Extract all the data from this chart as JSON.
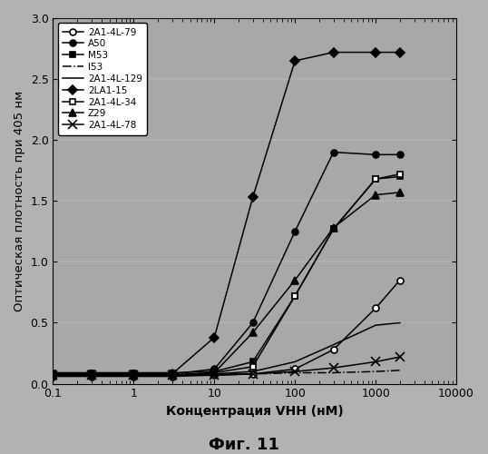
{
  "title": "",
  "xlabel": "Концентрация VHH (нМ)",
  "ylabel": "Оптическая плотность при 405 нм",
  "caption": "Фиг. 11",
  "xlim": [
    0.1,
    10000
  ],
  "ylim": [
    0,
    3
  ],
  "yticks": [
    0,
    0.5,
    1.0,
    1.5,
    2.0,
    2.5,
    3.0
  ],
  "background_color": "#b0b0b0",
  "plot_bg_color": "#a8a8a8",
  "series": [
    {
      "label": "2A1-4L-79",
      "marker": "o",
      "marker_fill": "white",
      "color": "#000000",
      "linestyle": "-",
      "x": [
        0.1,
        0.3,
        1,
        3,
        10,
        30,
        100,
        300,
        1000,
        2000
      ],
      "y": [
        0.06,
        0.06,
        0.06,
        0.06,
        0.07,
        0.08,
        0.12,
        0.28,
        0.62,
        0.85
      ]
    },
    {
      "label": "A50",
      "marker": "o",
      "marker_fill": "black",
      "color": "#000000",
      "linestyle": "-",
      "x": [
        0.1,
        0.3,
        1,
        3,
        10,
        30,
        100,
        300,
        1000,
        2000
      ],
      "y": [
        0.08,
        0.08,
        0.08,
        0.08,
        0.12,
        0.5,
        1.25,
        1.9,
        1.88,
        1.88
      ]
    },
    {
      "label": "M53",
      "marker": "s",
      "marker_fill": "black",
      "color": "#000000",
      "linestyle": "-",
      "x": [
        0.1,
        0.3,
        1,
        3,
        10,
        30,
        100,
        300,
        1000,
        2000
      ],
      "y": [
        0.09,
        0.09,
        0.09,
        0.09,
        0.1,
        0.18,
        0.72,
        1.27,
        1.68,
        1.7
      ]
    },
    {
      "label": "I53",
      "marker": "",
      "marker_fill": "none",
      "color": "#000000",
      "linestyle": "-.",
      "x": [
        0.1,
        0.3,
        1,
        3,
        10,
        30,
        100,
        300,
        1000,
        2000
      ],
      "y": [
        0.08,
        0.08,
        0.08,
        0.08,
        0.08,
        0.08,
        0.09,
        0.09,
        0.1,
        0.11
      ]
    },
    {
      "label": "2A1-4L-129",
      "marker": "",
      "marker_fill": "none",
      "color": "#000000",
      "linestyle": "-",
      "x": [
        0.1,
        0.3,
        1,
        3,
        10,
        30,
        100,
        300,
        1000,
        2000
      ],
      "y": [
        0.07,
        0.07,
        0.07,
        0.07,
        0.08,
        0.1,
        0.18,
        0.32,
        0.48,
        0.5
      ]
    },
    {
      "label": "2LA1-15",
      "marker": "D",
      "marker_fill": "black",
      "color": "#000000",
      "linestyle": "-",
      "x": [
        0.1,
        0.3,
        1,
        3,
        10,
        30,
        100,
        300,
        1000,
        2000
      ],
      "y": [
        0.07,
        0.07,
        0.07,
        0.08,
        0.38,
        1.53,
        2.65,
        2.72,
        2.72,
        2.72
      ]
    },
    {
      "label": "2A1-4L-34",
      "marker": "s",
      "marker_fill": "white",
      "color": "#000000",
      "linestyle": "-",
      "x": [
        0.1,
        0.3,
        1,
        3,
        10,
        30,
        100,
        300,
        1000,
        2000
      ],
      "y": [
        0.07,
        0.07,
        0.07,
        0.07,
        0.09,
        0.14,
        0.72,
        1.27,
        1.68,
        1.72
      ]
    },
    {
      "label": "Z29",
      "marker": "^",
      "marker_fill": "black",
      "color": "#000000",
      "linestyle": "-",
      "x": [
        0.1,
        0.3,
        1,
        3,
        10,
        30,
        100,
        300,
        1000,
        2000
      ],
      "y": [
        0.07,
        0.07,
        0.07,
        0.07,
        0.09,
        0.42,
        0.85,
        1.28,
        1.55,
        1.57
      ]
    },
    {
      "label": "2A1-4L-78",
      "marker": "x",
      "marker_fill": "black",
      "color": "#000000",
      "linestyle": "-",
      "x": [
        0.1,
        0.3,
        1,
        3,
        10,
        30,
        100,
        300,
        1000,
        2000
      ],
      "y": [
        0.07,
        0.07,
        0.07,
        0.07,
        0.07,
        0.08,
        0.1,
        0.13,
        0.18,
        0.22
      ]
    }
  ]
}
